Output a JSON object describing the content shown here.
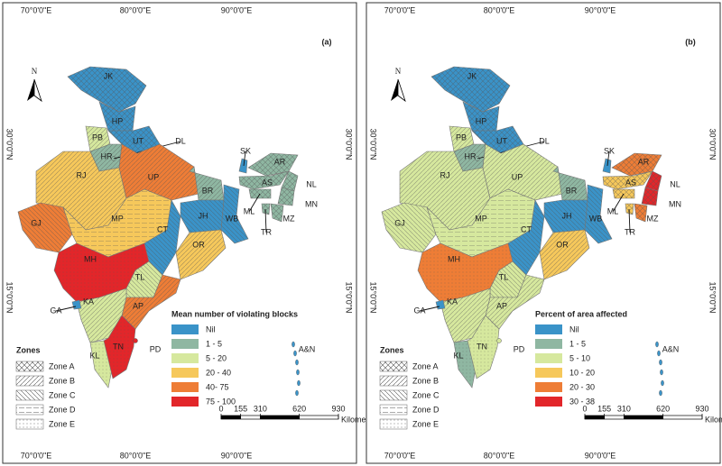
{
  "axes": {
    "top": [
      "70°0'0\"E",
      "80°0'0\"E",
      "90°0'0\"E"
    ],
    "side": [
      "30°0'0\"N",
      "15°0'0\"N"
    ]
  },
  "north": "N",
  "states": [
    "JK",
    "HP",
    "UT",
    "PB",
    "HR",
    "DL",
    "RJ",
    "UP",
    "BR",
    "GJ",
    "MP",
    "CT",
    "JH",
    "WB",
    "OR",
    "MH",
    "TL",
    "AP",
    "KA",
    "GA",
    "KL",
    "TN",
    "PD",
    "SK",
    "AR",
    "AS",
    "NL",
    "ML",
    "MN",
    "MZ",
    "TR",
    "A&N"
  ],
  "zones": {
    "title": "Zones",
    "items": [
      "Zone A",
      "Zone B",
      "Zone C",
      "Zone D",
      "Zone E"
    ]
  },
  "scale_bar": {
    "ticks": [
      0,
      155,
      310,
      620,
      930
    ],
    "unit": "Kilometers"
  },
  "panels": [
    {
      "label": "(a)",
      "legend_title": "Mean number of violating blocks",
      "legend": [
        {
          "label": "Nil",
          "color": "#3a93c8"
        },
        {
          "label": "1 - 5",
          "color": "#8fb7a2"
        },
        {
          "label": "5 - 20",
          "color": "#d6e89e"
        },
        {
          "label": "20 - 40",
          "color": "#f6c85b"
        },
        {
          "label": "40- 75",
          "color": "#ee7d36"
        },
        {
          "label": "75 - 100",
          "color": "#e2262a"
        }
      ],
      "state_classes": [
        0,
        0,
        0,
        2,
        1,
        1,
        3,
        4,
        1,
        4,
        3,
        0,
        0,
        0,
        3,
        5,
        2,
        4,
        2,
        0,
        2,
        5,
        5,
        0,
        1,
        1,
        1,
        1,
        1,
        1,
        1,
        0
      ]
    },
    {
      "label": "(b)",
      "legend_title": "Percent of area affected",
      "legend": [
        {
          "label": "Nil",
          "color": "#3a93c8"
        },
        {
          "label": "1 - 5",
          "color": "#8fb7a2"
        },
        {
          "label": "5 - 10",
          "color": "#d6e89e"
        },
        {
          "label": "10 - 20",
          "color": "#f6c85b"
        },
        {
          "label": "20 - 30",
          "color": "#ee7d36"
        },
        {
          "label": "30 - 38",
          "color": "#e2262a"
        }
      ],
      "state_classes": [
        0,
        0,
        0,
        2,
        1,
        1,
        2,
        2,
        1,
        2,
        2,
        0,
        0,
        0,
        3,
        4,
        2,
        2,
        2,
        0,
        1,
        2,
        2,
        0,
        4,
        3,
        5,
        3,
        5,
        4,
        3,
        0
      ]
    }
  ]
}
